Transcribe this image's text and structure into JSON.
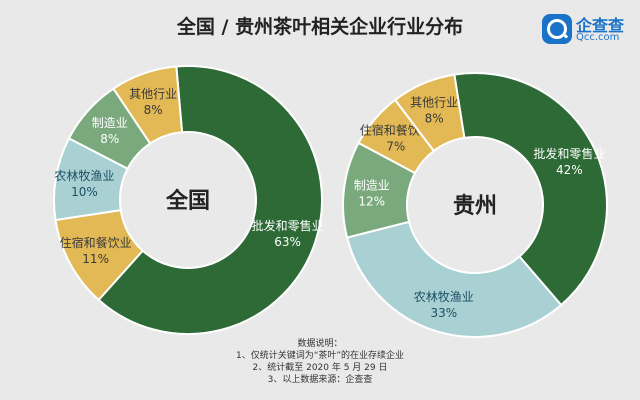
{
  "title": "全国 / 贵州茶叶相关企业行业分布",
  "logo": {
    "name": "企查查",
    "domain": "Qcc.com"
  },
  "notes": {
    "heading": "数据说明：",
    "lines": [
      "1、仅统计关键词为“茶叶”的在业存续企业",
      "2、统计截至 2020 年 5 月 29 日",
      "3、以上数据来源：企查查"
    ]
  },
  "colors": {
    "批发和零售业": "#2d6a35",
    "农林牧渔业": "#a9d1d4",
    "住宿和餐饮业": "#e2b955",
    "制造业": "#7aa97d",
    "其他行业": "#e2b955"
  },
  "chart_data": [
    {
      "type": "pie",
      "title": "全国",
      "categories": [
        "批发和零售业",
        "住宿和餐饮业",
        "农林牧渔业",
        "制造业",
        "其他行业"
      ],
      "values": [
        63,
        11,
        10,
        8,
        8
      ],
      "value_labels": [
        "63%",
        "11%",
        "10%",
        "8%",
        "8%"
      ]
    },
    {
      "type": "pie",
      "title": "贵州",
      "categories": [
        "批发和零售业",
        "农林牧渔业",
        "制造业",
        "住宿和餐饮业",
        "其他行业"
      ],
      "values": [
        42,
        33,
        12,
        7,
        8
      ],
      "value_labels": [
        "42%",
        "33%",
        "12%",
        "7%",
        "8%"
      ]
    }
  ]
}
